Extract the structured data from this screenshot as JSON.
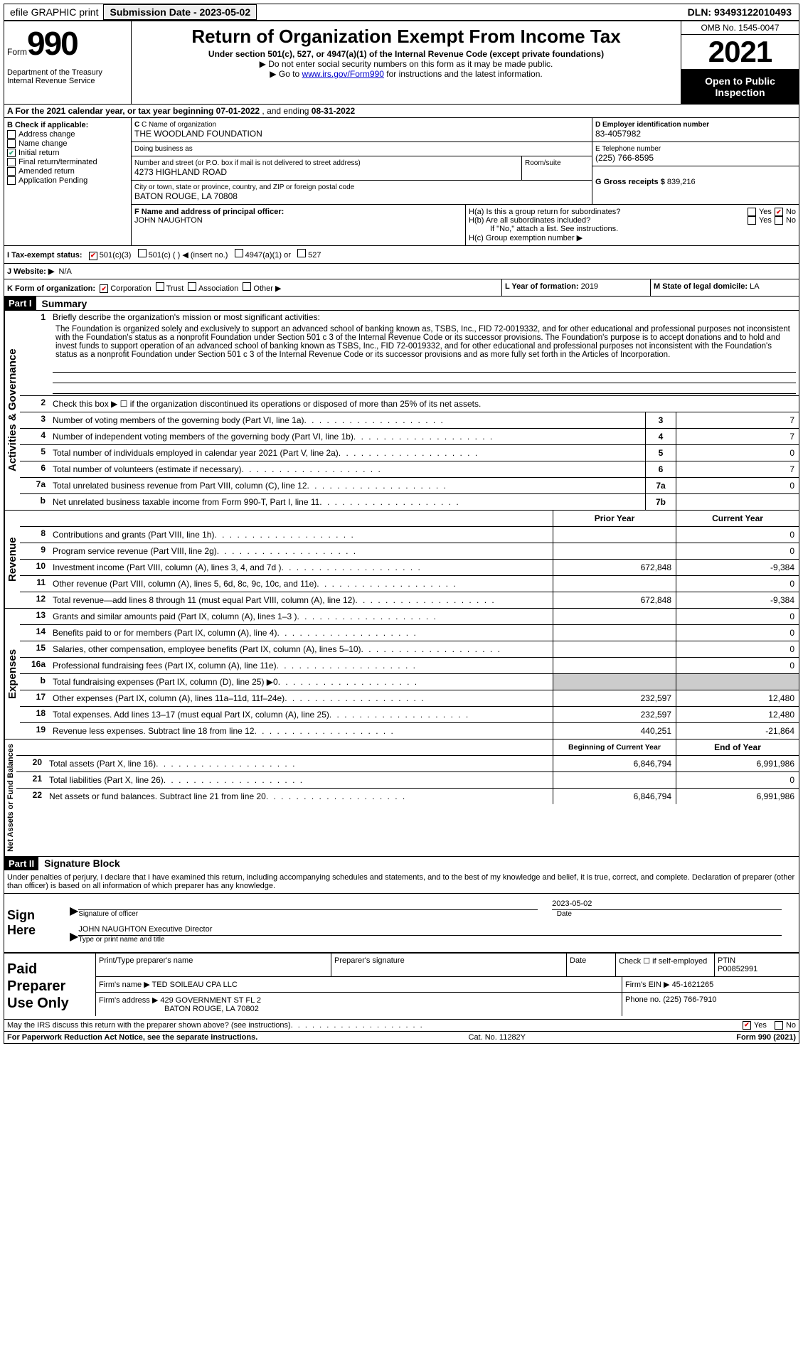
{
  "topbar": {
    "efile": "efile GRAPHIC print",
    "submission_label": "Submission Date - 2023-05-02",
    "dln": "DLN: 93493122010493"
  },
  "header": {
    "form_word": "Form",
    "form_num": "990",
    "title": "Return of Organization Exempt From Income Tax",
    "sub1": "Under section 501(c), 527, or 4947(a)(1) of the Internal Revenue Code (except private foundations)",
    "sub2": "▶ Do not enter social security numbers on this form as it may be made public.",
    "sub3_pre": "▶ Go to ",
    "sub3_link": "www.irs.gov/Form990",
    "sub3_post": " for instructions and the latest information.",
    "dept": "Department of the Treasury\nInternal Revenue Service",
    "omb": "OMB No. 1545-0047",
    "year": "2021",
    "open_pub": "Open to Public Inspection"
  },
  "rowA": {
    "text_pre": "A For the 2021 calendar year, or tax year beginning ",
    "begin": "07-01-2022",
    "mid": " , and ending ",
    "end": "08-31-2022"
  },
  "blockB": {
    "title": "B Check if applicable:",
    "items": [
      {
        "label": "Address change",
        "checked": false
      },
      {
        "label": "Name change",
        "checked": false
      },
      {
        "label": "Initial return",
        "checked": true
      },
      {
        "label": "Final return/terminated",
        "checked": false
      },
      {
        "label": "Amended return",
        "checked": false
      },
      {
        "label": "Application Pending",
        "checked": false
      }
    ]
  },
  "blockC": {
    "name_lbl": "C Name of organization",
    "name": "THE WOODLAND FOUNDATION",
    "dba_lbl": "Doing business as",
    "dba": "",
    "street_lbl": "Number and street (or P.O. box if mail is not delivered to street address)",
    "street": "4273 HIGHLAND ROAD",
    "room_lbl": "Room/suite",
    "city_lbl": "City or town, state or province, country, and ZIP or foreign postal code",
    "city": "BATON ROUGE, LA  70808"
  },
  "blockD": {
    "ein_lbl": "D Employer identification number",
    "ein": "83-4057982",
    "phone_lbl": "E Telephone number",
    "phone": "(225) 766-8595",
    "gross_lbl": "G Gross receipts $",
    "gross": "839,216"
  },
  "blockF": {
    "lbl": "F Name and address of principal officer:",
    "name": "JOHN NAUGHTON"
  },
  "blockH": {
    "ha": "H(a)  Is this a group return for subordinates?",
    "hb": "H(b)  Are all subordinates included?",
    "hb_note": "If \"No,\" attach a list. See instructions.",
    "hc": "H(c)  Group exemption number ▶",
    "yes": "Yes",
    "no": "No"
  },
  "rowI": {
    "lbl": "I  Tax-exempt status:",
    "o1": "501(c)(3)",
    "o2": "501(c) (  ) ◀ (insert no.)",
    "o3": "4947(a)(1) or",
    "o4": "527"
  },
  "rowJ": {
    "lbl": "J  Website: ▶",
    "val": "N/A"
  },
  "rowK": {
    "lbl": "K Form of organization:",
    "o1": "Corporation",
    "o2": "Trust",
    "o3": "Association",
    "o4": "Other ▶"
  },
  "rowL": {
    "lbl": "L Year of formation:",
    "val": "2019"
  },
  "rowM": {
    "lbl": "M State of legal domicile:",
    "val": "LA"
  },
  "part1": {
    "header": "Part I",
    "title": "Summary",
    "l1_pre": "Briefly describe the organization's mission or most significant activities:",
    "mission": "The Foundation is organized solely and exclusively to support an advanced school of banking known as, TSBS, Inc., FID 72-0019332, and for other educational and professional purposes not inconsistent with the Foundation's status as a nonprofit Foundation under Section 501 c 3 of the Internal Revenue Code or its successor provisions. The Foundation's purpose is to accept donations and to hold and invest funds to support operation of an advanced school of banking known as TSBS, Inc., FID 72-0019332, and for other educational and professional purposes not inconsistent with the Foundation's status as a nonprofit Foundation under Section 501 c 3 of the Internal Revenue Code or its successor provisions and as more fully set forth in the Articles of Incorporation.",
    "l2": "Check this box ▶ ☐ if the organization discontinued its operations or disposed of more than 25% of its net assets.",
    "vert1": "Activities & Governance",
    "vert2": "Revenue",
    "vert3": "Expenses",
    "vert4": "Net Assets or Fund Balances",
    "lines_ag": [
      {
        "n": "3",
        "d": "Number of voting members of the governing body (Part VI, line 1a)",
        "c": "3",
        "v": "7"
      },
      {
        "n": "4",
        "d": "Number of independent voting members of the governing body (Part VI, line 1b)",
        "c": "4",
        "v": "7"
      },
      {
        "n": "5",
        "d": "Total number of individuals employed in calendar year 2021 (Part V, line 2a)",
        "c": "5",
        "v": "0"
      },
      {
        "n": "6",
        "d": "Total number of volunteers (estimate if necessary)",
        "c": "6",
        "v": "7"
      },
      {
        "n": "7a",
        "d": "Total unrelated business revenue from Part VIII, column (C), line 12",
        "c": "7a",
        "v": "0"
      },
      {
        "n": "b",
        "d": "Net unrelated business taxable income from Form 990-T, Part I, line 11",
        "c": "7b",
        "v": ""
      }
    ],
    "col_py": "Prior Year",
    "col_cy": "Current Year",
    "lines_rev": [
      {
        "n": "8",
        "d": "Contributions and grants (Part VIII, line 1h)",
        "py": "",
        "cy": "0"
      },
      {
        "n": "9",
        "d": "Program service revenue (Part VIII, line 2g)",
        "py": "",
        "cy": "0"
      },
      {
        "n": "10",
        "d": "Investment income (Part VIII, column (A), lines 3, 4, and 7d )",
        "py": "672,848",
        "cy": "-9,384"
      },
      {
        "n": "11",
        "d": "Other revenue (Part VIII, column (A), lines 5, 6d, 8c, 9c, 10c, and 11e)",
        "py": "",
        "cy": "0"
      },
      {
        "n": "12",
        "d": "Total revenue—add lines 8 through 11 (must equal Part VIII, column (A), line 12)",
        "py": "672,848",
        "cy": "-9,384"
      }
    ],
    "lines_exp": [
      {
        "n": "13",
        "d": "Grants and similar amounts paid (Part IX, column (A), lines 1–3 )",
        "py": "",
        "cy": "0"
      },
      {
        "n": "14",
        "d": "Benefits paid to or for members (Part IX, column (A), line 4)",
        "py": "",
        "cy": "0"
      },
      {
        "n": "15",
        "d": "Salaries, other compensation, employee benefits (Part IX, column (A), lines 5–10)",
        "py": "",
        "cy": "0"
      },
      {
        "n": "16a",
        "d": "Professional fundraising fees (Part IX, column (A), line 11e)",
        "py": "",
        "cy": "0"
      },
      {
        "n": "b",
        "d": "Total fundraising expenses (Part IX, column (D), line 25) ▶0",
        "py": "SHADE",
        "cy": "SHADE"
      },
      {
        "n": "17",
        "d": "Other expenses (Part IX, column (A), lines 11a–11d, 11f–24e)",
        "py": "232,597",
        "cy": "12,480"
      },
      {
        "n": "18",
        "d": "Total expenses. Add lines 13–17 (must equal Part IX, column (A), line 25)",
        "py": "232,597",
        "cy": "12,480"
      },
      {
        "n": "19",
        "d": "Revenue less expenses. Subtract line 18 from line 12",
        "py": "440,251",
        "cy": "-21,864"
      }
    ],
    "col_bcy": "Beginning of Current Year",
    "col_eoy": "End of Year",
    "lines_na": [
      {
        "n": "20",
        "d": "Total assets (Part X, line 16)",
        "py": "6,846,794",
        "cy": "6,991,986"
      },
      {
        "n": "21",
        "d": "Total liabilities (Part X, line 26)",
        "py": "",
        "cy": "0"
      },
      {
        "n": "22",
        "d": "Net assets or fund balances. Subtract line 21 from line 20",
        "py": "6,846,794",
        "cy": "6,991,986"
      }
    ]
  },
  "part2": {
    "header": "Part II",
    "title": "Signature Block",
    "penalties": "Under penalties of perjury, I declare that I have examined this return, including accompanying schedules and statements, and to the best of my knowledge and belief, it is true, correct, and complete. Declaration of preparer (other than officer) is based on all information of which preparer has any knowledge.",
    "sign_here": "Sign Here",
    "sig_officer": "Signature of officer",
    "date_lbl": "Date",
    "date_val": "2023-05-02",
    "officer_line": "JOHN NAUGHTON  Executive Director",
    "type_name": "Type or print name and title",
    "paid_preparer": "Paid Preparer Use Only",
    "pp_name_lbl": "Print/Type preparer's name",
    "pp_sig_lbl": "Preparer's signature",
    "pp_date_lbl": "Date",
    "pp_check": "Check ☐ if self-employed",
    "ptin_lbl": "PTIN",
    "ptin": "P00852991",
    "firm_name_lbl": "Firm's name    ▶",
    "firm_name": "TED SOILEAU CPA LLC",
    "firm_ein_lbl": "Firm's EIN ▶",
    "firm_ein": "45-1621265",
    "firm_addr_lbl": "Firm's address ▶",
    "firm_addr": "429 GOVERNMENT ST FL 2",
    "firm_addr2": "BATON ROUGE, LA  70802",
    "firm_phone_lbl": "Phone no.",
    "firm_phone": "(225) 766-7910",
    "may_irs": "May the IRS discuss this return with the preparer shown above? (see instructions)"
  },
  "footer": {
    "left": "For Paperwork Reduction Act Notice, see the separate instructions.",
    "mid": "Cat. No. 11282Y",
    "right": "Form 990 (2021)"
  }
}
